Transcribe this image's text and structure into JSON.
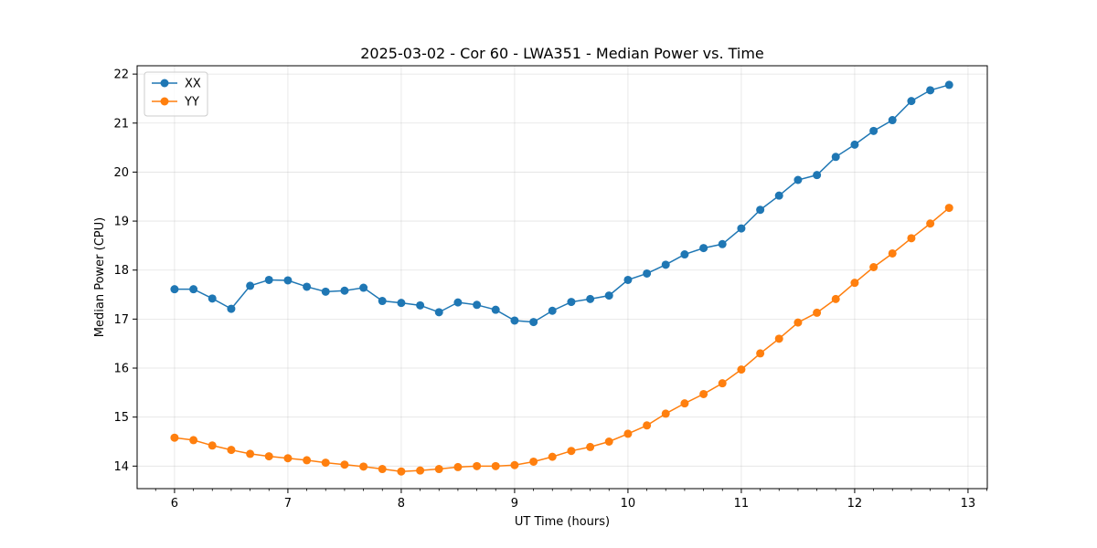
{
  "chart_data": {
    "type": "line",
    "title": "2025-03-02 - Cor 60 - LWA351 - Median Power vs. Time",
    "xlabel": "UT Time (hours)",
    "ylabel": "Median Power (CPU)",
    "xlim": [
      5.67,
      13.17
    ],
    "ylim": [
      13.54,
      22.17
    ],
    "xticks": [
      6,
      7,
      8,
      9,
      10,
      11,
      12,
      13
    ],
    "yticks": [
      14,
      15,
      16,
      17,
      18,
      19,
      20,
      21,
      22
    ],
    "grid": true,
    "legend_position": "top-left",
    "x": [
      6.0,
      6.167,
      6.333,
      6.5,
      6.667,
      6.833,
      7.0,
      7.167,
      7.333,
      7.5,
      7.667,
      7.833,
      8.0,
      8.167,
      8.333,
      8.5,
      8.667,
      8.833,
      9.0,
      9.167,
      9.333,
      9.5,
      9.667,
      9.833,
      10.0,
      10.167,
      10.333,
      10.5,
      10.667,
      10.833,
      11.0,
      11.167,
      11.333,
      11.5,
      11.667,
      11.833,
      12.0,
      12.167,
      12.333,
      12.5,
      12.667,
      12.833
    ],
    "series": [
      {
        "name": "XX",
        "color": "#1f77b4",
        "values": [
          17.61,
          17.61,
          17.42,
          17.21,
          17.68,
          17.8,
          17.79,
          17.66,
          17.56,
          17.58,
          17.64,
          17.37,
          17.33,
          17.28,
          17.14,
          17.34,
          17.29,
          17.19,
          16.97,
          16.94,
          17.17,
          17.35,
          17.41,
          17.48,
          17.8,
          17.93,
          18.11,
          18.32,
          18.45,
          18.53,
          18.85,
          19.23,
          19.52,
          19.84,
          19.94,
          20.31,
          20.56,
          20.84,
          21.06,
          21.45,
          21.67,
          21.78
        ]
      },
      {
        "name": "YY",
        "color": "#ff7f0e",
        "values": [
          14.58,
          14.53,
          14.42,
          14.33,
          14.25,
          14.2,
          14.16,
          14.12,
          14.07,
          14.03,
          13.99,
          13.94,
          13.89,
          13.91,
          13.94,
          13.98,
          14.0,
          14.0,
          14.02,
          14.09,
          14.19,
          14.31,
          14.39,
          14.5,
          14.66,
          14.83,
          15.07,
          15.28,
          15.47,
          15.69,
          15.97,
          16.3,
          16.6,
          16.93,
          17.13,
          17.41,
          17.74,
          18.06,
          18.34,
          18.65,
          18.95,
          19.27
        ]
      }
    ]
  }
}
